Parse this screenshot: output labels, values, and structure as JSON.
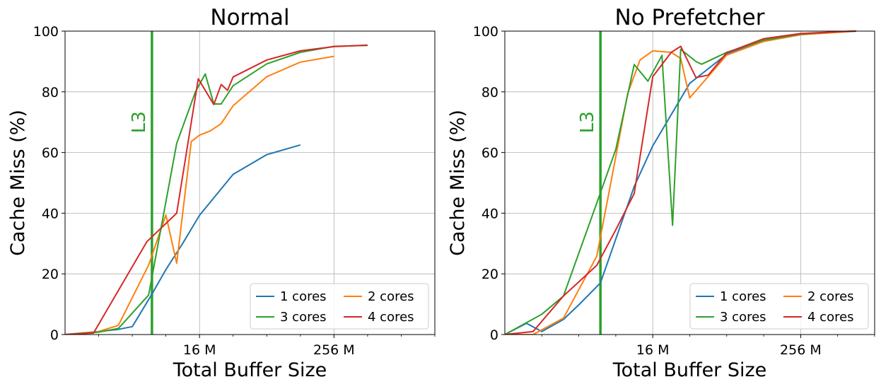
{
  "chart_data": [
    {
      "type": "line",
      "title": "Normal",
      "xlabel": "Total Buffer Size",
      "ylabel": "Cache Miss (%)",
      "x_scale": "log2",
      "xlim": [
        1,
        2048
      ],
      "ylim": [
        0,
        100
      ],
      "xticks": [
        {
          "value": 16,
          "label": "16 M"
        },
        {
          "value": 256,
          "label": "256 M"
        }
      ],
      "yticks": [
        0,
        20,
        40,
        60,
        80,
        100
      ],
      "grid": true,
      "legend": {
        "position": "bottom-right",
        "columns": 2
      },
      "annotation": {
        "label": "L3",
        "x": 6,
        "color": "#2ca02c"
      },
      "series": [
        {
          "name": "1 cores",
          "color": "#1f77b4",
          "points": [
            [
              1.0,
              0.0
            ],
            [
              1.4,
              0.5
            ],
            [
              2.0,
              1.0
            ],
            [
              3.0,
              1.7
            ],
            [
              4.0,
              2.6
            ],
            [
              5.9,
              12.9
            ],
            [
              8.0,
              21.4
            ],
            [
              11.3,
              30.0
            ],
            [
              16.0,
              39.3
            ],
            [
              32.0,
              52.8
            ],
            [
              64.0,
              59.3
            ],
            [
              128.0,
              62.5
            ]
          ]
        },
        {
          "name": "2 cores",
          "color": "#ff7f0e",
          "points": [
            [
              1.0,
              0.0
            ],
            [
              2.0,
              1.0
            ],
            [
              3.0,
              3.0
            ],
            [
              5.6,
              22.9
            ],
            [
              8.0,
              39.4
            ],
            [
              10.0,
              23.5
            ],
            [
              13.5,
              63.6
            ],
            [
              16.0,
              65.7
            ],
            [
              20.0,
              67.1
            ],
            [
              25.0,
              69.5
            ],
            [
              32.0,
              75.4
            ],
            [
              64.0,
              85.0
            ],
            [
              128.0,
              89.8
            ],
            [
              256.0,
              91.7
            ]
          ]
        },
        {
          "name": "3 cores",
          "color": "#2ca02c",
          "points": [
            [
              1.0,
              0.0
            ],
            [
              2.0,
              0.8
            ],
            [
              3.0,
              2.0
            ],
            [
              5.6,
              13.0
            ],
            [
              10.0,
              63.0
            ],
            [
              14.7,
              80.0
            ],
            [
              18.0,
              85.9
            ],
            [
              21.5,
              76.0
            ],
            [
              25.0,
              76.0
            ],
            [
              32.0,
              82.0
            ],
            [
              64.0,
              89.2
            ],
            [
              128.0,
              93.0
            ],
            [
              256.0,
              95.0
            ],
            [
              512.0,
              95.3
            ]
          ]
        },
        {
          "name": "4 cores",
          "color": "#d62728",
          "points": [
            [
              1.0,
              0.0
            ],
            [
              1.8,
              0.5
            ],
            [
              5.4,
              30.6
            ],
            [
              10.0,
              40.0
            ],
            [
              15.6,
              84.3
            ],
            [
              21.5,
              75.8
            ],
            [
              25.0,
              82.4
            ],
            [
              28.5,
              80.5
            ],
            [
              32.0,
              84.9
            ],
            [
              64.0,
              90.5
            ],
            [
              128.0,
              93.5
            ],
            [
              256.0,
              94.9
            ],
            [
              512.0,
              95.4
            ]
          ]
        }
      ]
    },
    {
      "type": "line",
      "title": "No Prefetcher",
      "xlabel": "Total Buffer Size",
      "ylabel": "Cache Miss (%)",
      "x_scale": "log2",
      "xlim": [
        1,
        1024
      ],
      "ylim": [
        0,
        100
      ],
      "xticks": [
        {
          "value": 16,
          "label": "16 M"
        },
        {
          "value": 256,
          "label": "256 M"
        }
      ],
      "yticks": [
        0,
        20,
        40,
        60,
        80,
        100
      ],
      "grid": true,
      "legend": {
        "position": "bottom-right",
        "columns": 2
      },
      "annotation": {
        "label": "L3",
        "x": 6,
        "color": "#2ca02c"
      },
      "series": [
        {
          "name": "1 cores",
          "color": "#1f77b4",
          "points": [
            [
              1.0,
              0.0
            ],
            [
              1.5,
              3.7
            ],
            [
              2.0,
              1.0
            ],
            [
              3.0,
              5.0
            ],
            [
              4.0,
              9.8
            ],
            [
              6.0,
              17.0
            ],
            [
              8.0,
              31.5
            ],
            [
              11.3,
              48.8
            ],
            [
              16.0,
              62.2
            ],
            [
              32.0,
              82.8
            ],
            [
              64.0,
              92.4
            ],
            [
              128.0,
              97.0
            ],
            [
              256.0,
              98.9
            ],
            [
              512.0,
              99.8
            ],
            [
              724.0,
              100.0
            ]
          ]
        },
        {
          "name": "2 cores",
          "color": "#ff7f0e",
          "points": [
            [
              1.0,
              0.0
            ],
            [
              1.7,
              0.0
            ],
            [
              3.0,
              5.4
            ],
            [
              5.6,
              25.8
            ],
            [
              8.0,
              58.6
            ],
            [
              10.0,
              79.4
            ],
            [
              12.6,
              90.5
            ],
            [
              16.0,
              93.5
            ],
            [
              22.6,
              93.0
            ],
            [
              27.0,
              91.0
            ],
            [
              32.0,
              78.0
            ],
            [
              64.0,
              92.1
            ],
            [
              128.0,
              96.6
            ],
            [
              256.0,
              98.8
            ],
            [
              512.0,
              99.6
            ],
            [
              724.0,
              100.0
            ]
          ]
        },
        {
          "name": "3 cores",
          "color": "#2ca02c",
          "points": [
            [
              1.0,
              0.0
            ],
            [
              2.0,
              6.7
            ],
            [
              3.0,
              12.7
            ],
            [
              5.6,
              43.3
            ],
            [
              8.0,
              61.0
            ],
            [
              11.3,
              89.0
            ],
            [
              14.6,
              83.5
            ],
            [
              19.0,
              92.0
            ],
            [
              23.2,
              36.0
            ],
            [
              27.0,
              94.0
            ],
            [
              35.9,
              90.0
            ],
            [
              40.0,
              89.1
            ],
            [
              64.0,
              93.0
            ],
            [
              128.0,
              97.0
            ],
            [
              256.0,
              99.0
            ],
            [
              512.0,
              99.8
            ],
            [
              724.0,
              100.0
            ]
          ]
        },
        {
          "name": "4 cores",
          "color": "#d62728",
          "points": [
            [
              1.0,
              0.0
            ],
            [
              1.7,
              1.0
            ],
            [
              3.0,
              12.7
            ],
            [
              5.6,
              22.8
            ],
            [
              8.0,
              34.5
            ],
            [
              11.3,
              46.5
            ],
            [
              16.0,
              85.0
            ],
            [
              22.6,
              93.0
            ],
            [
              27.0,
              95.0
            ],
            [
              35.9,
              84.7
            ],
            [
              45.3,
              85.5
            ],
            [
              64.0,
              92.9
            ],
            [
              128.0,
              97.5
            ],
            [
              256.0,
              99.2
            ],
            [
              512.0,
              99.8
            ],
            [
              724.0,
              100.0
            ]
          ]
        }
      ]
    }
  ]
}
